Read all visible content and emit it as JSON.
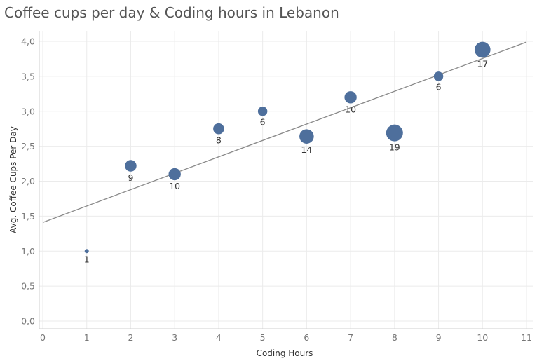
{
  "chart_data": {
    "type": "scatter",
    "title": "Coffee cups per day & Coding hours in Lebanon",
    "xlabel": "Coding Hours",
    "ylabel": "Avg. Coffee Cups Per Day",
    "xlim": [
      0,
      11
    ],
    "ylim": [
      0,
      4
    ],
    "x_ticks": [
      "0",
      "1",
      "2",
      "3",
      "4",
      "5",
      "6",
      "7",
      "8",
      "9",
      "10",
      "11"
    ],
    "y_ticks": [
      "0,0",
      "0,5",
      "1,0",
      "1,5",
      "2,0",
      "2,5",
      "3,0",
      "3,5",
      "4,0"
    ],
    "grid": true,
    "points": [
      {
        "x": 1,
        "y": 1.0,
        "size": 1,
        "label": "1"
      },
      {
        "x": 2,
        "y": 2.22,
        "size": 9,
        "label": "9"
      },
      {
        "x": 3,
        "y": 2.1,
        "size": 10,
        "label": "10"
      },
      {
        "x": 4,
        "y": 2.75,
        "size": 8,
        "label": "8"
      },
      {
        "x": 5,
        "y": 3.0,
        "size": 6,
        "label": "6"
      },
      {
        "x": 6,
        "y": 2.64,
        "size": 14,
        "label": "14"
      },
      {
        "x": 7,
        "y": 3.2,
        "size": 10,
        "label": "10"
      },
      {
        "x": 8,
        "y": 2.69,
        "size": 19,
        "label": "19"
      },
      {
        "x": 9,
        "y": 3.5,
        "size": 6,
        "label": "6"
      },
      {
        "x": 10,
        "y": 3.88,
        "size": 17,
        "label": "17"
      }
    ],
    "trend_line": {
      "x0": 0,
      "y0": 1.41,
      "x1": 11,
      "y1": 3.99
    },
    "colors": {
      "point": "#4e6f9c",
      "trend": "#8a8a8a",
      "grid": "#ebebeb",
      "axis": "#cfcfcf"
    }
  }
}
